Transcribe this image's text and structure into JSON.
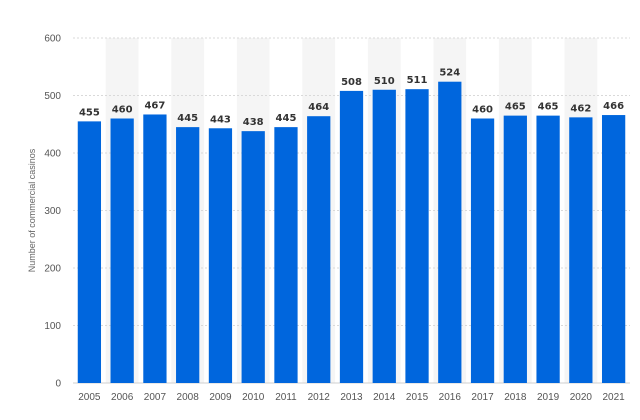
{
  "chart_data": {
    "type": "bar",
    "categories": [
      "2005",
      "2006",
      "2007",
      "2008",
      "2009",
      "2010",
      "2011",
      "2012",
      "2013",
      "2014",
      "2015",
      "2016",
      "2017",
      "2018",
      "2019",
      "2020",
      "2021"
    ],
    "values": [
      455,
      460,
      467,
      445,
      443,
      438,
      445,
      464,
      508,
      510,
      511,
      524,
      460,
      465,
      465,
      462,
      466
    ],
    "data_labels": [
      "455",
      "460",
      "467",
      "445",
      "443",
      "438",
      "445",
      "464",
      "508",
      "510",
      "511",
      "524",
      "460",
      "465",
      "465",
      "462",
      "466"
    ],
    "title": "",
    "xlabel": "",
    "ylabel": "Number of commercial casinos",
    "ylim": [
      0,
      600
    ],
    "yticks": [
      "0",
      "100",
      "200",
      "300",
      "400",
      "500",
      "600"
    ],
    "grid": true,
    "bar_color": "#0066dd",
    "alt_band_color": "#f5f5f5"
  }
}
